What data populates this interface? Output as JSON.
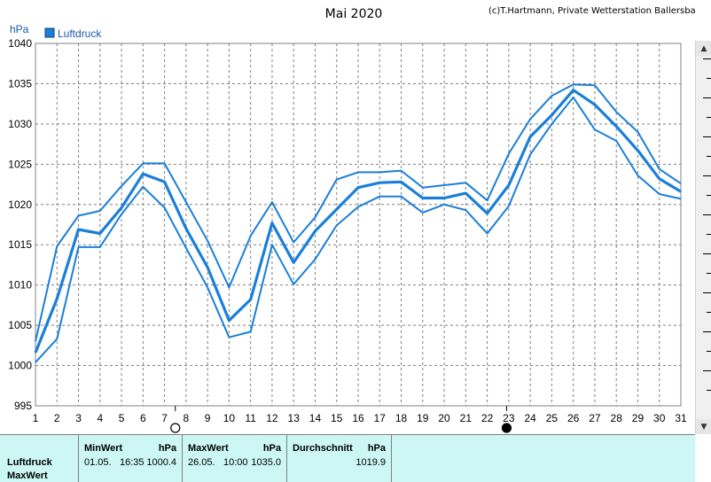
{
  "header": {
    "title": "Mai 2020",
    "copyright": "(c)T.Hartmann, Private Wetterstation Ballersbach"
  },
  "legend": {
    "label": "Luftdruck",
    "color": "#1a7fd9"
  },
  "scrollbar": {
    "up": "▲",
    "down": "▼"
  },
  "stats": {
    "row_label_1": "Luftdruck",
    "row_label_2": "MaxWert",
    "min": {
      "header": "MinWert",
      "unit": "hPa",
      "date": "01.05.",
      "time": "16:35",
      "value": "1000.4"
    },
    "max": {
      "header": "MaxWert",
      "unit": "hPa",
      "date": "26.05.",
      "time": "10:00",
      "value": "1035.0"
    },
    "avg": {
      "header": "Durchschnitt",
      "unit": "hPa",
      "value": "1019.9"
    }
  },
  "chart_data": {
    "type": "line",
    "ylabel": "hPa",
    "ylim": [
      995,
      1040
    ],
    "yticks": [
      995,
      1000,
      1005,
      1010,
      1015,
      1020,
      1025,
      1030,
      1035,
      1040
    ],
    "x": [
      1,
      2,
      3,
      4,
      5,
      6,
      7,
      8,
      9,
      10,
      11,
      12,
      13,
      14,
      15,
      16,
      17,
      18,
      19,
      20,
      21,
      22,
      23,
      24,
      25,
      26,
      27,
      28,
      29,
      30,
      31
    ],
    "moon_phases": [
      {
        "day": 7.5,
        "phase": "full"
      },
      {
        "day": 22.9,
        "phase": "new"
      }
    ],
    "series": [
      {
        "name": "Luftdruck",
        "role": "max",
        "width": 2,
        "values": [
          1003.0,
          1014.8,
          1018.6,
          1019.2,
          1022.3,
          1025.1,
          1025.1,
          1020.3,
          1015.5,
          1009.7,
          1016.1,
          1020.3,
          1015.3,
          1018.4,
          1023.1,
          1024.0,
          1024.0,
          1024.2,
          1022.1,
          1022.4,
          1022.7,
          1020.5,
          1026.3,
          1030.6,
          1033.5,
          1034.9,
          1034.8,
          1031.5,
          1029.0,
          1024.4,
          1022.6
        ]
      },
      {
        "name": "Luftdruck",
        "role": "mean",
        "width": 3.2,
        "values": [
          1001.6,
          1008.3,
          1016.9,
          1016.4,
          1019.6,
          1023.8,
          1022.8,
          1017.0,
          1012.2,
          1005.6,
          1008.2,
          1017.7,
          1012.8,
          1016.7,
          1019.4,
          1022.1,
          1022.7,
          1022.8,
          1020.8,
          1020.8,
          1021.4,
          1018.9,
          1022.4,
          1028.4,
          1031.1,
          1034.2,
          1032.4,
          1029.7,
          1026.7,
          1023.2,
          1021.6
        ]
      },
      {
        "name": "Luftdruck",
        "role": "min",
        "width": 2,
        "values": [
          1000.4,
          1003.3,
          1014.7,
          1014.7,
          1018.8,
          1022.2,
          1019.6,
          1014.6,
          1009.7,
          1003.5,
          1004.2,
          1015.0,
          1010.1,
          1013.2,
          1017.4,
          1019.7,
          1021.0,
          1021.0,
          1019.0,
          1020.0,
          1019.3,
          1016.4,
          1019.8,
          1026.2,
          1030.0,
          1033.3,
          1029.3,
          1027.9,
          1023.6,
          1021.3,
          1020.7
        ]
      }
    ]
  }
}
